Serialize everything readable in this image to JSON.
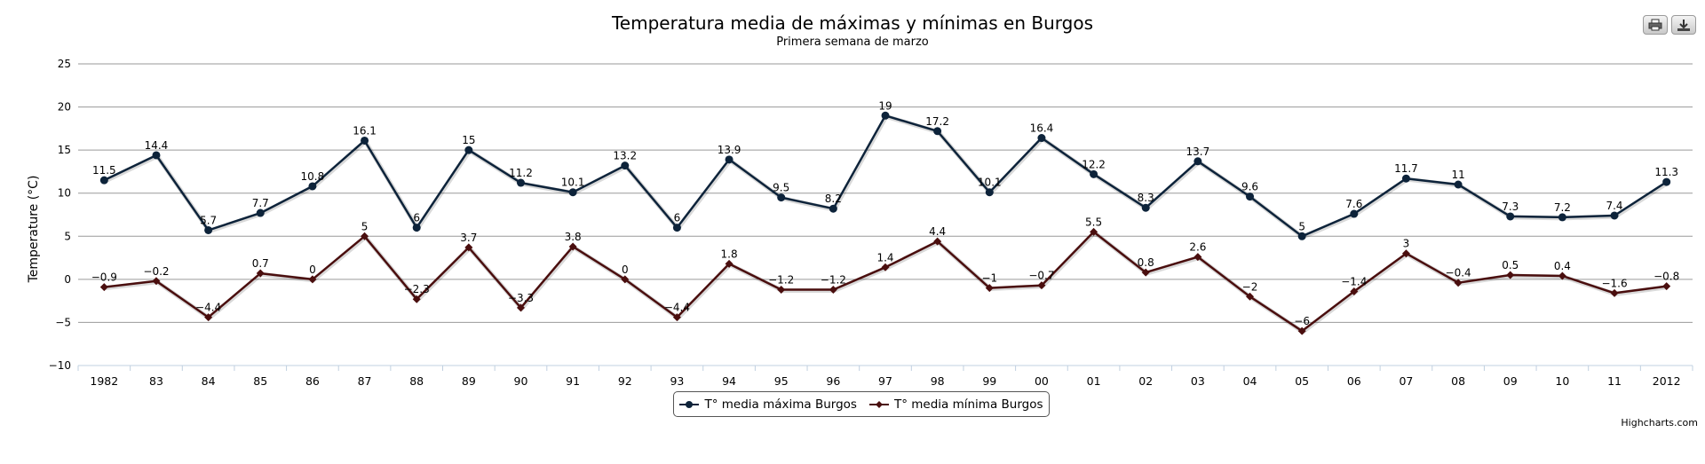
{
  "toolbar": {
    "print_icon": "printer-icon",
    "export_icon": "download-icon"
  },
  "credit": "Highcharts.com",
  "chart_data": {
    "type": "line",
    "title": "Temperatura media de máximas y mínimas en Burgos",
    "subtitle": "Primera semana de marzo",
    "ylabel": "Temperature (°C)",
    "xlabel": "",
    "ylim": [
      -10,
      25
    ],
    "yticks": [
      -10,
      -5,
      0,
      5,
      10,
      15,
      20,
      25
    ],
    "grid": true,
    "legend_position": "bottom-center",
    "categories": [
      "1982",
      "83",
      "84",
      "85",
      "86",
      "87",
      "88",
      "89",
      "90",
      "91",
      "92",
      "93",
      "94",
      "95",
      "96",
      "97",
      "98",
      "99",
      "00",
      "01",
      "02",
      "03",
      "04",
      "05",
      "06",
      "07",
      "08",
      "09",
      "10",
      "11",
      "2012"
    ],
    "series": [
      {
        "name": "T° media máxima Burgos",
        "color": "#0d233a",
        "marker": "circle",
        "values": [
          11.5,
          14.4,
          5.7,
          7.7,
          10.8,
          16.1,
          6,
          15,
          11.2,
          10.1,
          13.2,
          6,
          13.9,
          9.5,
          8.2,
          19,
          17.2,
          10.1,
          16.4,
          12.2,
          8.3,
          13.7,
          9.6,
          5,
          7.6,
          11.7,
          11,
          7.3,
          7.2,
          7.4,
          11.3
        ]
      },
      {
        "name": "T° media mínima Burgos",
        "color": "#4a0e0e",
        "marker": "diamond",
        "values": [
          -0.9,
          -0.2,
          -4.4,
          0.7,
          0,
          5,
          -2.3,
          3.7,
          -3.3,
          3.8,
          0,
          -4.4,
          1.8,
          -1.2,
          -1.2,
          1.4,
          4.4,
          -1,
          -0.7,
          5.5,
          0.8,
          2.6,
          -2,
          -6,
          -1.4,
          3,
          -0.4,
          0.5,
          0.4,
          -1.6,
          -0.8
        ]
      }
    ]
  }
}
